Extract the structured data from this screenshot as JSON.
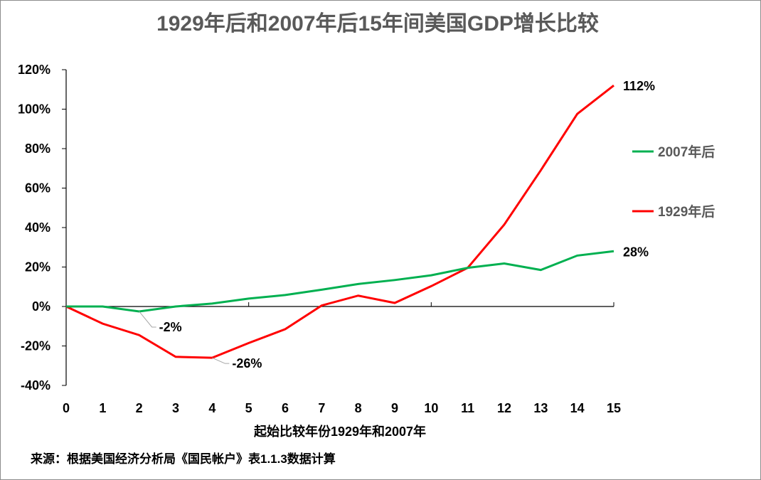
{
  "chart_data": {
    "type": "line",
    "title": "1929年后和2007年后15年间美国GDP增长比较",
    "xlabel": "起始比较年份1929年和2007年",
    "source_note": "来源：根据美国经济分析局《国民帐户》表1.1.3数据计算",
    "x": [
      0,
      1,
      2,
      3,
      4,
      5,
      6,
      7,
      8,
      9,
      10,
      11,
      12,
      13,
      14,
      15
    ],
    "ylim": [
      -40,
      120
    ],
    "yticks": [
      -40,
      -20,
      0,
      20,
      40,
      60,
      80,
      100,
      120
    ],
    "ytick_labels": [
      "-40%",
      "-20%",
      "0%",
      "20%",
      "40%",
      "60%",
      "80%",
      "100%",
      "120%"
    ],
    "grid": false,
    "legend_position": "right",
    "series": [
      {
        "name": "2007年后",
        "color": "#00B050",
        "values": [
          0,
          0,
          -2.5,
          0,
          1.5,
          4,
          5.8,
          8.5,
          11.4,
          13.4,
          15.8,
          19.6,
          21.8,
          18.5,
          25.8,
          28
        ]
      },
      {
        "name": "1929年后",
        "color": "#FF0000",
        "values": [
          0,
          -8.7,
          -14.5,
          -25.5,
          -26,
          -18.5,
          -11.5,
          0.5,
          5.5,
          1.8,
          10.3,
          19.6,
          41.5,
          69,
          97.6,
          112
        ]
      }
    ],
    "annotations": [
      {
        "series": "2007年后",
        "x": 2,
        "text": "-2%"
      },
      {
        "series": "1929年后",
        "x": 4,
        "text": "-26%"
      },
      {
        "series": "1929年后",
        "x": 15,
        "text": "112%"
      },
      {
        "series": "2007年后",
        "x": 15,
        "text": "28%"
      }
    ]
  }
}
